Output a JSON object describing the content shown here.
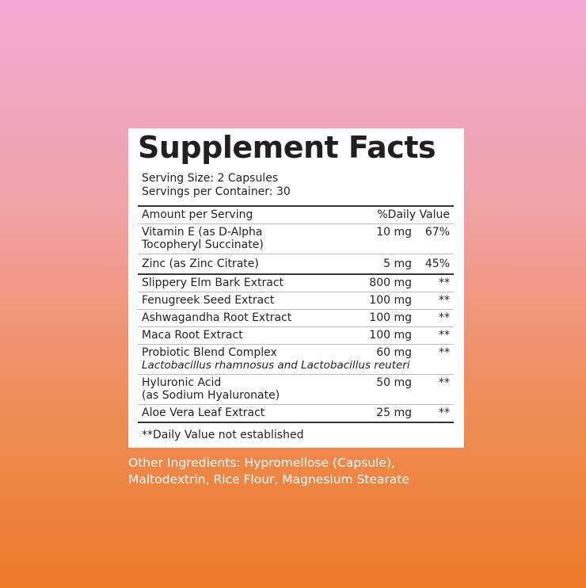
{
  "title": "Supplement Facts",
  "serving_size": "Serving Size: 2 Capsules",
  "servings_per_container": "Servings per Container: 30",
  "header": {
    "amount": "Amount per Serving",
    "dv": "%Daily Value"
  },
  "rows": [
    {
      "name": "Vitamin E (as D-Alpha",
      "name2": "Tocopheryl Succinate)",
      "amount": "10 mg",
      "dv": "67%"
    },
    {
      "name": "Zinc (as Zinc Citrate)",
      "amount": "5 mg",
      "dv": "45%"
    },
    {
      "name": "Slippery Elm Bark Extract",
      "amount": "800 mg",
      "dv": "**"
    },
    {
      "name": "Fenugreek Seed Extract",
      "amount": "100 mg",
      "dv": "**"
    },
    {
      "name": "Ashwagandha Root Extract",
      "amount": "100 mg",
      "dv": "**"
    },
    {
      "name": "Maca Root Extract",
      "amount": "100 mg",
      "dv": "**"
    },
    {
      "name": "Probiotic Blend Complex",
      "sub": "Lactobacillus rhamnosus and Lactobacillus reuteri",
      "amount": "60 mg",
      "dv": "**"
    },
    {
      "name": "Hyluronic Acid",
      "name2": "(as Sodium Hyaluronate)",
      "amount": "50 mg",
      "dv": "**"
    },
    {
      "name": "Aloe Vera Leaf Extract",
      "amount": "25 mg",
      "dv": "**"
    }
  ],
  "footnote": "**Daily Value not established",
  "other_ingredients": [
    "Other Ingredients: Hypromellose (Capsule),",
    "Maltodextrin, Rice Flour, Magnesium Stearate"
  ]
}
